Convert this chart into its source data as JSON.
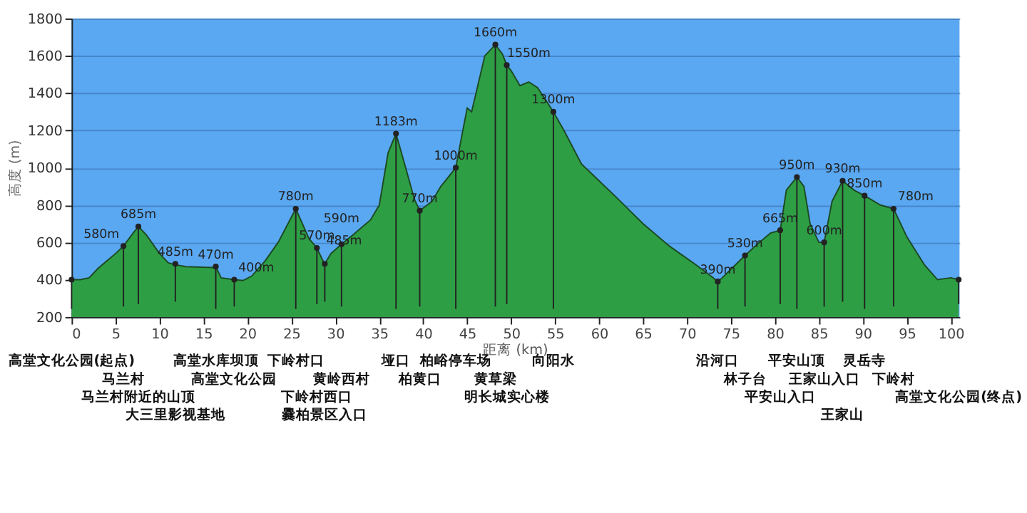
{
  "chart_data": {
    "type": "area",
    "xlabel": "距离 (km)",
    "ylabel": "高度 (m)",
    "xlim": [
      0,
      101
    ],
    "ylim": [
      200,
      1800
    ],
    "xticks": [
      0,
      5,
      10,
      15,
      20,
      25,
      30,
      35,
      40,
      45,
      50,
      55,
      60,
      65,
      70,
      75,
      80,
      85,
      90,
      95,
      100
    ],
    "yticks": [
      200,
      400,
      600,
      800,
      1000,
      1200,
      1400,
      1600,
      1800
    ],
    "grid": "y",
    "series": [
      {
        "color": "#2e9e44",
        "x": [
          0,
          1,
          2,
          3,
          4,
          5,
          5.9,
          7,
          7.6,
          8.5,
          10,
          11,
          11.8,
          13,
          16,
          16.4,
          17,
          18.5,
          19.5,
          20.5,
          22,
          23.5,
          25.5,
          27,
          27.9,
          28.5,
          28.8,
          29.5,
          30.7,
          32,
          34,
          35,
          36,
          36.9,
          38,
          39,
          39.6,
          41,
          42,
          43.7,
          44.5,
          45,
          45.5,
          47,
          48.2,
          49,
          49.5,
          50,
          51,
          52,
          53,
          54.8,
          56,
          58,
          60,
          62,
          65,
          68,
          71,
          73,
          73.5,
          74,
          76.6,
          78,
          79.5,
          80.6,
          81.3,
          82.5,
          83.3,
          84,
          85,
          85.6,
          86.5,
          87.7,
          89,
          90.2,
          92,
          93.5,
          95,
          97,
          98.5,
          100,
          100.9
        ],
        "values": [
          400,
          400,
          410,
          460,
          500,
          540,
          580,
          650,
          685,
          640,
          540,
          490,
          480,
          470,
          465,
          470,
          410,
          400,
          395,
          420,
          500,
          600,
          780,
          620,
          570,
          510,
          485,
          540,
          590,
          640,
          720,
          800,
          1080,
          1183,
          1000,
          830,
          770,
          820,
          900,
          1000,
          1200,
          1320,
          1300,
          1600,
          1660,
          1610,
          1550,
          1520,
          1440,
          1460,
          1430,
          1300,
          1200,
          1020,
          930,
          840,
          700,
          580,
          480,
          410,
          390,
          410,
          530,
          590,
          650,
          665,
          880,
          950,
          900,
          700,
          600,
          600,
          820,
          930,
          880,
          850,
          800,
          780,
          630,
          480,
          400,
          410,
          400
        ]
      },
      {
        "type": "lollipop",
        "color": "#222222",
        "x": [
          0,
          5.9,
          7.6,
          11.8,
          16.4,
          18.5,
          25.5,
          27.9,
          28.8,
          30.7,
          36.9,
          39.6,
          43.7,
          48.2,
          49.5,
          54.8,
          73.5,
          76.6,
          80.6,
          82.5,
          85.6,
          87.7,
          90.2,
          93.5,
          100.9
        ],
        "values": [
          400,
          580,
          685,
          485,
          470,
          400,
          780,
          570,
          485,
          590,
          1183,
          770,
          1000,
          1660,
          1550,
          1300,
          390,
          530,
          665,
          950,
          600,
          930,
          850,
          780,
          400
        ],
        "value_labels": [
          null,
          "580m",
          "685m",
          "485m",
          "470m",
          "400m",
          "780m",
          "570m",
          "485m",
          "590m",
          "1183m",
          "770m",
          "1000m",
          "1660m",
          "1550m",
          "1300m",
          "390m",
          "530m",
          "665m",
          "950m",
          "600m",
          "930m",
          "850m",
          "780m",
          null
        ]
      }
    ],
    "annotations": [
      "高堂文化公园(起点)",
      "马兰村",
      "马兰村附近的山顶",
      "大三里影视基地",
      "高堂水库坝顶",
      "高堂文化公园",
      "下岭村口",
      "下岭村西口",
      "爨柏景区入口",
      "黄岭西村",
      "垭口",
      "柏黄口",
      "柏峪停车场",
      "黄草梁",
      "明长城实心楼",
      "向阳水",
      "沿河口",
      "林子台",
      "平安山入口",
      "平安山顶",
      "王家山入口",
      "王家山",
      "灵岳寺",
      "下岭村",
      "高堂文化公园(终点)"
    ]
  }
}
